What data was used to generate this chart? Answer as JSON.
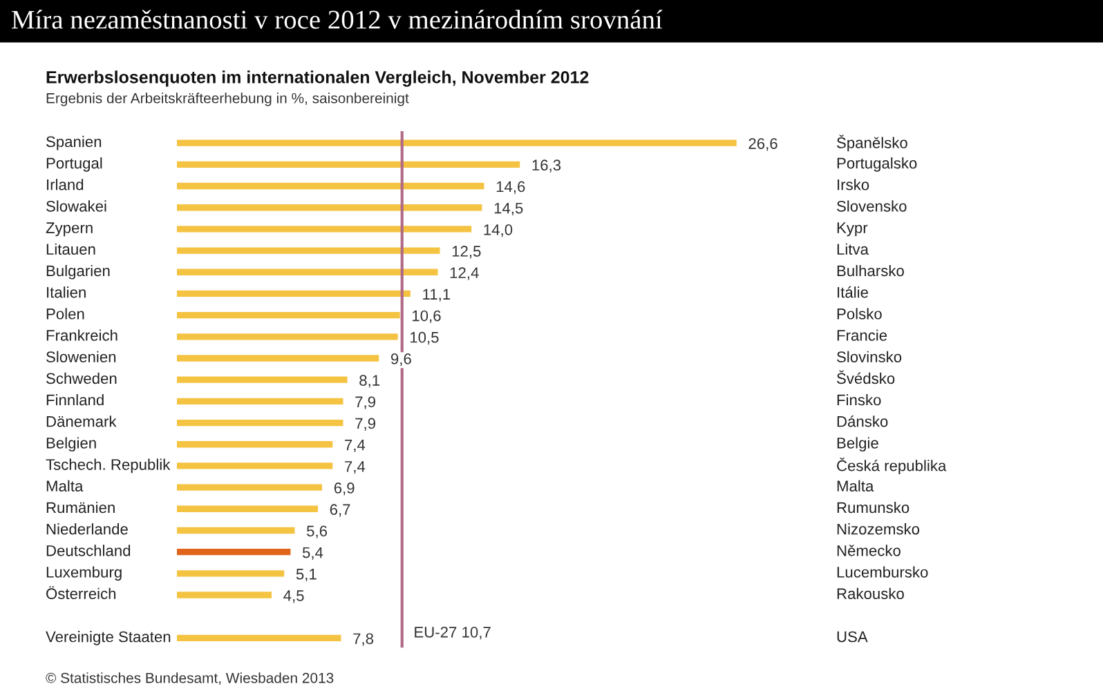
{
  "chart_data": {
    "type": "bar",
    "orientation": "horizontal",
    "title": "Míra nezaměstnanosti v roce 2012 v mezinárodním srovnání",
    "subtitle": "Erwerbslosenquoten im internationalen Vergleich, November 2012",
    "annotations": [
      "Ergebnis der Arbeitskräfteerhebung in %, saisonbereinigt",
      "© Statistisches Bundesamt, Wiesbaden 2013"
    ],
    "categories": [
      "Spanien",
      "Portugal",
      "Irland",
      "Slowakei",
      "Zypern",
      "Litauen",
      "Bulgarien",
      "Italien",
      "Polen",
      "Frankreich",
      "Slowenien",
      "Schweden",
      "Finnland",
      "Dänemark",
      "Belgien",
      "Tschech. Republik",
      "Malta",
      "Rumänien",
      "Niederlande",
      "Deutschland",
      "Luxemburg",
      "Österreich",
      null,
      "Vereinigte Staaten"
    ],
    "y2_categories": [
      "Španělsko",
      "Portugalsko",
      "Irsko",
      "Slovensko",
      "Kypr",
      "Litva",
      "Bulharsko",
      "Itálie",
      "Polsko",
      "Francie",
      "Slovinsko",
      "Švédsko",
      "Finsko",
      "Dánsko",
      "Belgie",
      "Česká republika",
      "Malta",
      "Rumunsko",
      "Nizozemsko",
      "Německo",
      "Lucembursko",
      "Rakousko",
      null,
      "USA"
    ],
    "values": [
      26.6,
      16.3,
      14.6,
      14.5,
      14.0,
      12.5,
      12.4,
      11.1,
      10.6,
      10.5,
      9.6,
      8.1,
      7.9,
      7.9,
      7.4,
      7.4,
      6.9,
      6.7,
      5.6,
      5.4,
      5.1,
      4.5,
      null,
      7.8
    ],
    "value_labels": [
      "26,6",
      "16,3",
      "14,6",
      "14,5",
      "14,0",
      "12,5",
      "12,4",
      "11,1",
      "10,6",
      "10,5",
      "9,6",
      "8,1",
      "7,9",
      "7,9",
      "7,4",
      "7,4",
      "6,9",
      "6,7",
      "5,6",
      "5,4",
      "5,1",
      "4,5",
      null,
      "7,8"
    ],
    "colors": [
      "#f5c342",
      "#f5c342",
      "#f5c342",
      "#f5c342",
      "#f5c342",
      "#f5c342",
      "#f5c342",
      "#f5c342",
      "#f5c342",
      "#f5c342",
      "#f5c342",
      "#f5c342",
      "#f5c342",
      "#f5c342",
      "#f5c342",
      "#f5c342",
      "#f5c342",
      "#f5c342",
      "#f5c342",
      "#e0641a",
      "#f5c342",
      "#f5c342",
      null,
      "#f5c342"
    ],
    "ref_lines": [
      {
        "axis": "x",
        "value": 10.7,
        "label": "EU-27 10,7",
        "color": "#b06a86"
      }
    ]
  }
}
